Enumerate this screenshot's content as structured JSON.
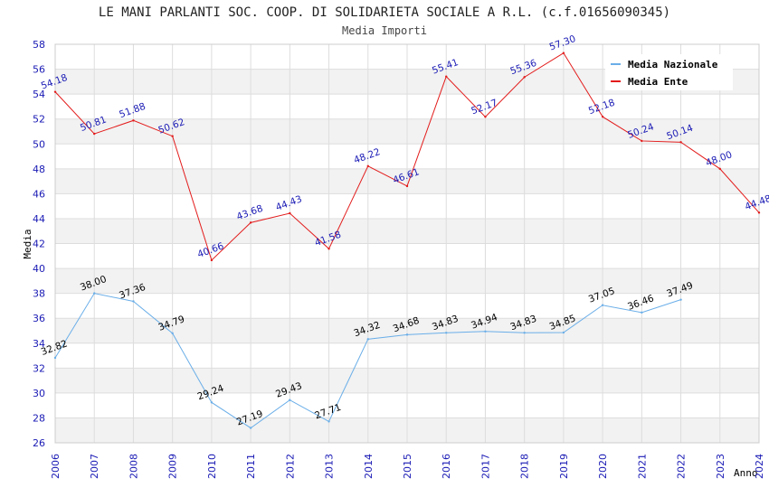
{
  "chart_data": {
    "type": "line",
    "title": "LE MANI PARLANTI SOC. COOP. DI SOLIDARIETA SOCIALE A R.L. (c.f.01656090345)",
    "subtitle": "Media Importi",
    "xlabel": "Anno",
    "ylabel": "Media",
    "ylim": [
      26,
      58
    ],
    "ytick_step": 2,
    "x": [
      "2006",
      "2007",
      "2008",
      "2009",
      "2010",
      "2011",
      "2012",
      "2013",
      "2014",
      "2015",
      "2016",
      "2017",
      "2018",
      "2019",
      "2020",
      "2021",
      "2022",
      "2023",
      "2024"
    ],
    "series": [
      {
        "name": "Media Nazionale",
        "color": "#6aaee8",
        "label_color": "#000000",
        "values": [
          32.82,
          38.0,
          37.36,
          34.79,
          29.24,
          27.19,
          29.43,
          27.71,
          34.32,
          34.68,
          34.83,
          34.94,
          34.83,
          34.85,
          37.05,
          36.46,
          37.49,
          null,
          null
        ],
        "labels": [
          "32.82",
          "38.00",
          "37.36",
          "34.79",
          "29.24",
          "27.19",
          "29.43",
          "27.71",
          "34.32",
          "34.68",
          "34.83",
          "34.94",
          "34.83",
          "34.85",
          "37.05",
          "36.46",
          "37.49",
          null,
          null
        ]
      },
      {
        "name": "Media Ente",
        "color": "#e31b1b",
        "label_color": "#1a1ab5",
        "values": [
          54.18,
          50.81,
          51.88,
          50.62,
          40.66,
          43.68,
          44.43,
          41.58,
          48.22,
          46.61,
          55.41,
          52.17,
          55.36,
          57.3,
          52.18,
          50.24,
          50.14,
          48.0,
          44.48
        ],
        "labels": [
          "54.18",
          "50.81",
          "51.88",
          "50.62",
          "40.66",
          "43.68",
          "44.43",
          "41.58",
          "48.22",
          "46.61",
          "55.41",
          "52.17",
          "55.36",
          "57.30",
          "52.18",
          "50.24",
          "50.14",
          "48.00",
          "44.48"
        ]
      }
    ],
    "grid": true,
    "legend": "top-right"
  }
}
